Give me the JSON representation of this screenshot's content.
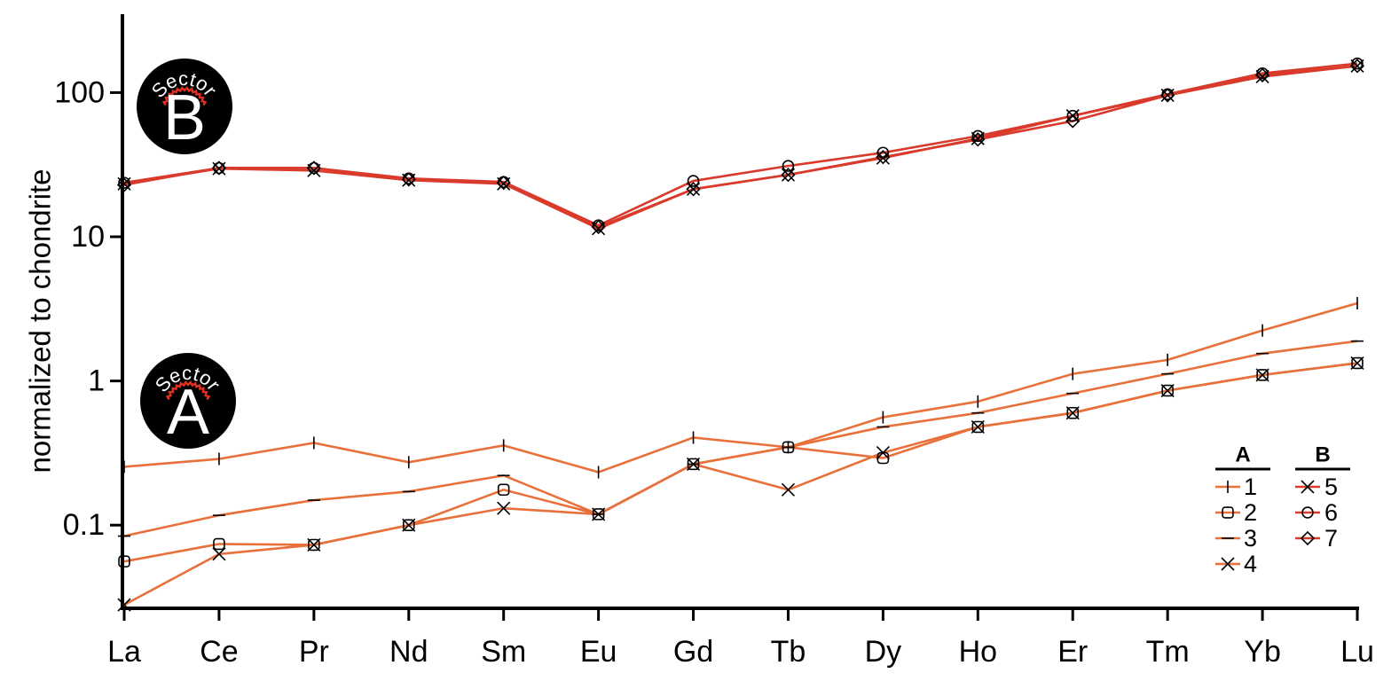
{
  "chart_data": {
    "type": "line",
    "y_label": "normalized to chondrite",
    "log_scale": true,
    "categories": [
      "La",
      "Ce",
      "Pr",
      "Nd",
      "Sm",
      "Eu",
      "Gd",
      "Tb",
      "Dy",
      "Ho",
      "Er",
      "Tm",
      "Yb",
      "Lu"
    ],
    "ylim": [
      0.0265,
      340
    ],
    "yticks": [
      {
        "value": 0.1,
        "label": "0.1"
      },
      1,
      10,
      100
    ],
    "legend_titles": [
      "A",
      "B"
    ],
    "badges": [
      {
        "arc_text": "Sector",
        "letter": "B"
      },
      {
        "arc_text": "Sector",
        "letter": "A"
      }
    ],
    "series": [
      {
        "name": "1",
        "color": "#e8703a",
        "marker": "plus",
        "values": [
          0.254,
          0.288,
          0.372,
          0.273,
          0.357,
          0.233,
          0.405,
          0.347,
          0.56,
          0.72,
          1.12,
          1.4,
          2.24,
          3.46
        ]
      },
      {
        "name": "2",
        "color": "#e8703a",
        "marker": "square",
        "values": [
          0.056,
          0.074,
          0.073,
          0.1,
          0.176,
          0.119,
          0.265,
          0.347,
          0.292,
          0.48,
          0.6,
          0.857,
          1.1,
          1.33
        ]
      },
      {
        "name": "3",
        "color": "#e8703a",
        "marker": "dash",
        "values": [
          0.084,
          0.117,
          0.149,
          0.171,
          0.221,
          0.119,
          0.265,
          0.347,
          0.48,
          0.6,
          0.82,
          1.12,
          1.55,
          1.89
        ]
      },
      {
        "name": "4",
        "color": "#e8703a",
        "marker": "cross",
        "values": [
          0.028,
          0.063,
          0.073,
          0.1,
          0.131,
          0.119,
          0.265,
          0.176,
          0.318,
          0.48,
          0.6,
          0.857,
          1.1,
          1.33
        ]
      },
      {
        "name": "5",
        "color": "#d93a2b",
        "marker": "cross",
        "values": [
          23.3,
          29.7,
          28.8,
          24.7,
          23.3,
          11.4,
          21.4,
          26.9,
          35.2,
          48,
          69,
          95.8,
          129,
          153
        ]
      },
      {
        "name": "6",
        "color": "#d93a2b",
        "marker": "circle",
        "values": [
          23.7,
          30,
          30,
          25.4,
          24,
          12,
          24.4,
          31,
          38.3,
          50,
          69,
          97.5,
          136,
          159
        ]
      },
      {
        "name": "7",
        "color": "#d93a2b",
        "marker": "diamond",
        "values": [
          22.9,
          30,
          30,
          25,
          23.7,
          11.7,
          21.4,
          26.9,
          35.7,
          47.3,
          63.5,
          95.8,
          132,
          153
        ]
      }
    ]
  }
}
